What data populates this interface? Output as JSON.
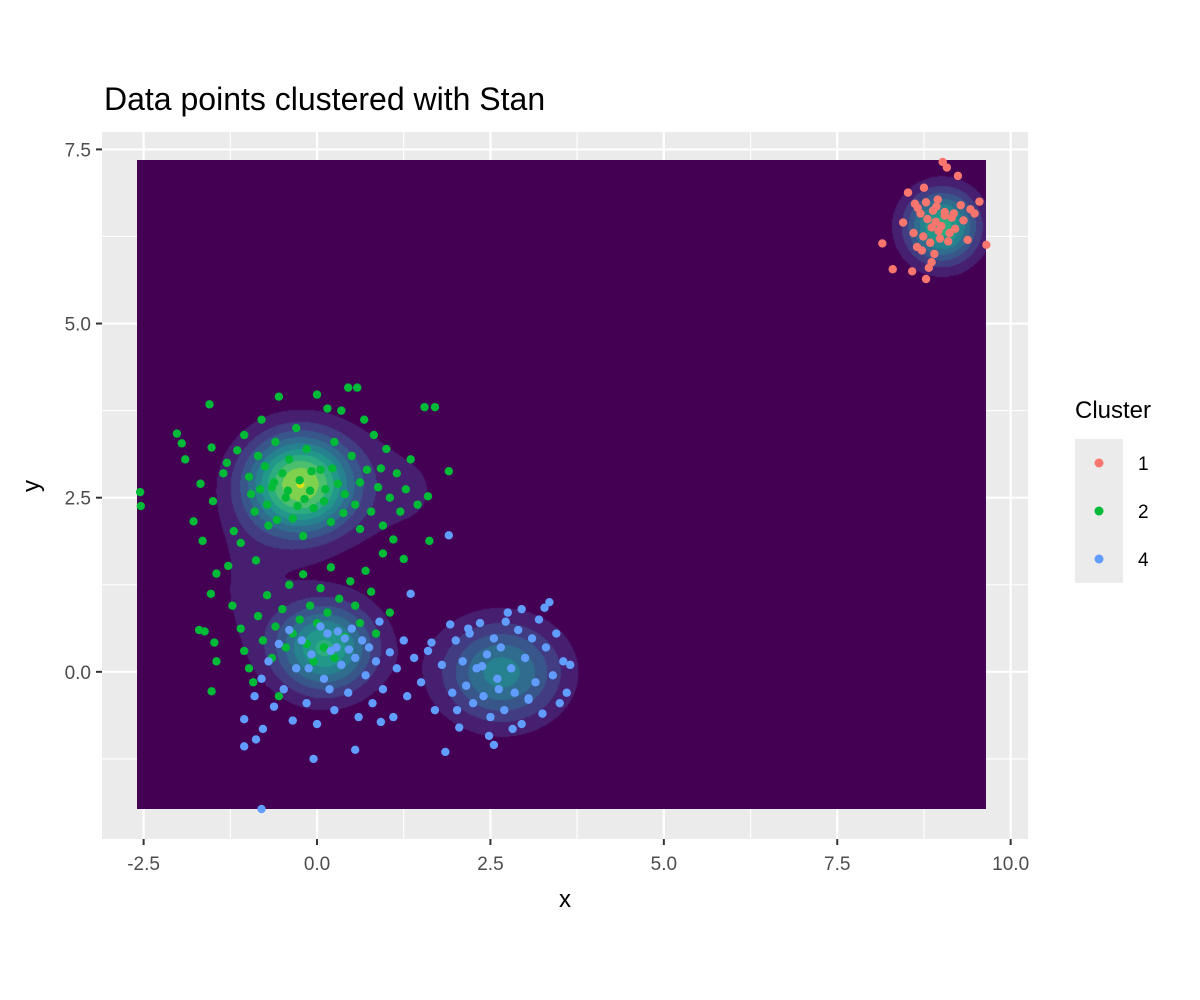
{
  "chart_data": {
    "type": "scatter",
    "title": "Data points clustered with Stan",
    "xlabel": "x",
    "ylabel": "y",
    "xlim": [
      -3.1,
      10.25
    ],
    "ylim": [
      -2.4,
      7.75
    ],
    "density_xlim": [
      -2.6,
      9.65
    ],
    "density_ylim": [
      -1.97,
      7.35
    ],
    "x_ticks": [
      {
        "value": -2.5,
        "label": "-2.5"
      },
      {
        "value": 0,
        "label": "0.0"
      },
      {
        "value": 2.5,
        "label": "2.5"
      },
      {
        "value": 5,
        "label": "5.0"
      },
      {
        "value": 7.5,
        "label": "7.5"
      },
      {
        "value": 10,
        "label": "10.0"
      }
    ],
    "y_ticks": [
      {
        "value": 0,
        "label": "0.0"
      },
      {
        "value": 2.5,
        "label": "2.5"
      },
      {
        "value": 5,
        "label": "5.0"
      },
      {
        "value": 7.5,
        "label": "7.5"
      }
    ],
    "legend": {
      "title": "Cluster",
      "position": "right",
      "entries": [
        {
          "label": "1",
          "color": "#F8766D"
        },
        {
          "label": "2",
          "color": "#00BA38"
        },
        {
          "label": "4",
          "color": "#619CFF"
        }
      ]
    },
    "colors": {
      "panel_bg": "#EBEBEB",
      "grid": "#FFFFFF",
      "density_low": "#440154",
      "density_high": "#DDE318"
    },
    "series": [
      {
        "name": "1",
        "color": "#F8766D",
        "points": [
          [
            9.02,
            7.32
          ],
          [
            9.08,
            7.24
          ],
          [
            9.24,
            7.12
          ],
          [
            8.75,
            6.95
          ],
          [
            8.52,
            6.88
          ],
          [
            9.55,
            6.75
          ],
          [
            8.62,
            6.72
          ],
          [
            8.78,
            6.74
          ],
          [
            8.95,
            6.78
          ],
          [
            9.28,
            6.7
          ],
          [
            9.42,
            6.64
          ],
          [
            9.48,
            6.58
          ],
          [
            8.88,
            6.62
          ],
          [
            8.7,
            6.58
          ],
          [
            9.05,
            6.55
          ],
          [
            9.15,
            6.52
          ],
          [
            8.8,
            6.5
          ],
          [
            8.92,
            6.46
          ],
          [
            9.0,
            6.4
          ],
          [
            8.86,
            6.38
          ],
          [
            8.96,
            6.33
          ],
          [
            8.45,
            6.45
          ],
          [
            9.12,
            6.3
          ],
          [
            9.2,
            6.36
          ],
          [
            8.74,
            6.25
          ],
          [
            8.98,
            6.22
          ],
          [
            9.1,
            6.18
          ],
          [
            8.84,
            6.16
          ],
          [
            8.15,
            6.15
          ],
          [
            9.65,
            6.13
          ],
          [
            8.65,
            6.1
          ],
          [
            8.72,
            6.05
          ],
          [
            8.9,
            6.0
          ],
          [
            8.86,
            5.88
          ],
          [
            8.82,
            5.8
          ],
          [
            8.3,
            5.78
          ],
          [
            8.58,
            5.75
          ],
          [
            8.78,
            5.64
          ],
          [
            9.05,
            6.6
          ],
          [
            8.66,
            6.66
          ],
          [
            9.32,
            6.48
          ],
          [
            8.6,
            6.3
          ],
          [
            9.18,
            6.58
          ],
          [
            8.93,
            6.68
          ],
          [
            9.38,
            6.2
          ]
        ]
      },
      {
        "name": "2",
        "color": "#00BA38",
        "points": [
          [
            -2.55,
            2.58
          ],
          [
            -2.54,
            2.38
          ],
          [
            -2.02,
            3.42
          ],
          [
            -1.95,
            3.28
          ],
          [
            -1.9,
            3.05
          ],
          [
            -1.78,
            2.16
          ],
          [
            -1.68,
            2.7
          ],
          [
            -1.65,
            1.88
          ],
          [
            -1.55,
            3.84
          ],
          [
            -1.52,
            3.22
          ],
          [
            -1.5,
            2.45
          ],
          [
            -1.45,
            1.41
          ],
          [
            -1.53,
            1.12
          ],
          [
            -1.7,
            0.6
          ],
          [
            -1.62,
            0.58
          ],
          [
            -1.48,
            0.42
          ],
          [
            -1.45,
            0.15
          ],
          [
            -1.52,
            -0.28
          ],
          [
            -1.3,
            3.0
          ],
          [
            -1.2,
            2.02
          ],
          [
            -1.15,
            3.18
          ],
          [
            -1.1,
            1.85
          ],
          [
            -1.05,
            3.4
          ],
          [
            -0.98,
            2.8
          ],
          [
            -0.95,
            2.55
          ],
          [
            -0.9,
            2.3
          ],
          [
            -0.88,
            1.6
          ],
          [
            -0.85,
            3.1
          ],
          [
            -0.8,
            3.62
          ],
          [
            -0.75,
            2.95
          ],
          [
            -0.72,
            2.4
          ],
          [
            -0.7,
            2.1
          ],
          [
            -0.65,
            2.65
          ],
          [
            -0.6,
            3.3
          ],
          [
            -0.55,
            3.95
          ],
          [
            -0.5,
            2.85
          ],
          [
            -0.45,
            2.5
          ],
          [
            -0.4,
            3.05
          ],
          [
            -0.35,
            2.2
          ],
          [
            -0.3,
            3.5
          ],
          [
            -0.25,
            2.75
          ],
          [
            -0.2,
            1.95
          ],
          [
            -0.15,
            3.2
          ],
          [
            -0.1,
            2.6
          ],
          [
            -0.05,
            2.35
          ],
          [
            0.0,
            3.98
          ],
          [
            0.05,
            2.9
          ],
          [
            0.1,
            2.45
          ],
          [
            0.15,
            3.78
          ],
          [
            0.2,
            2.15
          ],
          [
            0.25,
            3.3
          ],
          [
            0.3,
            2.7
          ],
          [
            0.35,
            3.75
          ],
          [
            0.4,
            2.55
          ],
          [
            0.45,
            4.08
          ],
          [
            0.5,
            3.1
          ],
          [
            0.55,
            2.4
          ],
          [
            0.58,
            4.08
          ],
          [
            0.62,
            2.05
          ],
          [
            0.68,
            3.62
          ],
          [
            0.72,
            2.9
          ],
          [
            0.78,
            2.3
          ],
          [
            0.82,
            3.4
          ],
          [
            0.88,
            2.65
          ],
          [
            0.95,
            2.1
          ],
          [
            1.0,
            3.2
          ],
          [
            1.05,
            2.5
          ],
          [
            1.1,
            1.9
          ],
          [
            1.15,
            2.85
          ],
          [
            1.2,
            2.3
          ],
          [
            1.28,
            2.62
          ],
          [
            1.35,
            3.05
          ],
          [
            1.45,
            2.4
          ],
          [
            1.55,
            3.8
          ],
          [
            1.6,
            2.52
          ],
          [
            1.62,
            1.88
          ],
          [
            1.7,
            3.8
          ],
          [
            1.9,
            2.88
          ],
          [
            -1.22,
            0.95
          ],
          [
            -1.1,
            0.62
          ],
          [
            -1.05,
            0.3
          ],
          [
            -0.98,
            0.05
          ],
          [
            -0.92,
            -0.15
          ],
          [
            -0.85,
            0.8
          ],
          [
            -0.78,
            0.45
          ],
          [
            -0.72,
            1.1
          ],
          [
            -0.65,
            0.2
          ],
          [
            -0.6,
            0.65
          ],
          [
            -0.55,
            -0.35
          ],
          [
            -0.5,
            0.9
          ],
          [
            -0.45,
            0.35
          ],
          [
            -0.4,
            1.25
          ],
          [
            -0.35,
            0.55
          ],
          [
            -0.3,
            0.05
          ],
          [
            -0.25,
            0.75
          ],
          [
            -0.2,
            1.4
          ],
          [
            -0.15,
            0.4
          ],
          [
            -0.1,
            0.95
          ],
          [
            -0.05,
            0.15
          ],
          [
            0.0,
            0.7
          ],
          [
            0.05,
            1.2
          ],
          [
            0.1,
            0.35
          ],
          [
            0.15,
            0.85
          ],
          [
            0.2,
            1.5
          ],
          [
            0.25,
            0.2
          ],
          [
            0.32,
            1.05
          ],
          [
            0.4,
            0.5
          ],
          [
            0.48,
            1.3
          ],
          [
            0.55,
            0.95
          ],
          [
            0.62,
            0.7
          ],
          [
            0.7,
            1.45
          ],
          [
            0.78,
            1.15
          ],
          [
            0.85,
            0.55
          ],
          [
            0.95,
            1.7
          ],
          [
            1.05,
            0.85
          ],
          [
            -0.62,
            2.72
          ],
          [
            -0.42,
            2.6
          ],
          [
            -0.18,
            2.48
          ],
          [
            -0.08,
            2.88
          ],
          [
            0.12,
            2.62
          ],
          [
            0.22,
            2.92
          ],
          [
            0.38,
            2.28
          ],
          [
            -0.28,
            2.38
          ],
          [
            -0.58,
            2.18
          ],
          [
            -0.82,
            2.62
          ],
          [
            0.62,
            2.72
          ],
          [
            0.92,
            2.92
          ],
          [
            -1.35,
            2.85
          ],
          [
            -1.28,
            1.52
          ],
          [
            1.25,
            1.62
          ]
        ]
      },
      {
        "name": "4",
        "color": "#619CFF",
        "points": [
          [
            -0.8,
            -1.97
          ],
          [
            -1.05,
            -1.07
          ],
          [
            -0.88,
            -0.97
          ],
          [
            -1.05,
            -0.68
          ],
          [
            -0.9,
            -0.35
          ],
          [
            -0.8,
            -0.1
          ],
          [
            -0.7,
            0.15
          ],
          [
            -0.62,
            -0.5
          ],
          [
            -0.55,
            0.4
          ],
          [
            -0.48,
            -0.25
          ],
          [
            -0.4,
            0.6
          ],
          [
            -0.35,
            -0.7
          ],
          [
            -0.3,
            0.05
          ],
          [
            -0.22,
            0.45
          ],
          [
            -0.15,
            -0.45
          ],
          [
            -0.08,
            0.25
          ],
          [
            0.0,
            -0.75
          ],
          [
            0.05,
            0.65
          ],
          [
            0.1,
            -0.1
          ],
          [
            0.15,
            0.55
          ],
          [
            0.2,
            0.3
          ],
          [
            0.25,
            -0.55
          ],
          [
            0.3,
            0.58
          ],
          [
            0.35,
            0.1
          ],
          [
            0.4,
            0.48
          ],
          [
            0.45,
            -0.3
          ],
          [
            0.5,
            0.62
          ],
          [
            0.55,
            0.2
          ],
          [
            0.6,
            -0.65
          ],
          [
            0.65,
            0.45
          ],
          [
            0.7,
            -0.05
          ],
          [
            0.75,
            0.35
          ],
          [
            0.8,
            -0.45
          ],
          [
            0.85,
            0.15
          ],
          [
            0.9,
            0.72
          ],
          [
            0.95,
            -0.25
          ],
          [
            1.05,
            0.28
          ],
          [
            1.1,
            -0.65
          ],
          [
            1.15,
            0.05
          ],
          [
            1.25,
            0.45
          ],
          [
            1.3,
            -0.35
          ],
          [
            1.4,
            0.2
          ],
          [
            1.5,
            -0.15
          ],
          [
            1.6,
            0.3
          ],
          [
            1.7,
            -0.55
          ],
          [
            1.8,
            0.1
          ],
          [
            1.9,
            1.96
          ],
          [
            1.95,
            -0.3
          ],
          [
            2.0,
            0.45
          ],
          [
            2.05,
            -0.8
          ],
          [
            2.1,
            0.15
          ],
          [
            2.15,
            -0.2
          ],
          [
            2.2,
            0.55
          ],
          [
            2.25,
            -0.45
          ],
          [
            2.3,
            0.05
          ],
          [
            2.35,
            0.7
          ],
          [
            2.4,
            -0.35
          ],
          [
            2.45,
            0.25
          ],
          [
            2.5,
            -0.65
          ],
          [
            2.55,
            0.48
          ],
          [
            2.6,
            -0.1
          ],
          [
            2.65,
            0.35
          ],
          [
            2.7,
            -0.55
          ],
          [
            2.75,
            0.85
          ],
          [
            2.8,
            0.05
          ],
          [
            2.85,
            -0.3
          ],
          [
            2.9,
            0.6
          ],
          [
            2.95,
            -0.75
          ],
          [
            3.0,
            0.2
          ],
          [
            3.05,
            -0.4
          ],
          [
            3.1,
            0.48
          ],
          [
            3.15,
            -0.15
          ],
          [
            3.2,
            0.75
          ],
          [
            3.25,
            -0.6
          ],
          [
            3.3,
            0.35
          ],
          [
            3.35,
            1.0
          ],
          [
            3.4,
            -0.05
          ],
          [
            3.45,
            0.55
          ],
          [
            3.5,
            -0.45
          ],
          [
            3.55,
            0.15
          ],
          [
            3.6,
            -0.3
          ],
          [
            3.65,
            0.1
          ],
          [
            2.95,
            0.9
          ],
          [
            3.28,
            0.92
          ],
          [
            2.55,
            -1.05
          ],
          [
            1.85,
            -1.15
          ],
          [
            -0.05,
            -1.25
          ],
          [
            0.55,
            -1.12
          ],
          [
            -0.78,
            -0.82
          ],
          [
            0.92,
            -0.72
          ],
          [
            1.35,
            1.12
          ],
          [
            2.18,
            0.62
          ],
          [
            2.48,
            -0.92
          ],
          [
            2.72,
            0.72
          ],
          [
            2.38,
            0.08
          ],
          [
            2.62,
            -0.25
          ],
          [
            2.82,
            -0.82
          ],
          [
            3.05,
            -0.38
          ],
          [
            0.28,
            0.35
          ],
          [
            0.46,
            0.32
          ],
          [
            0.18,
            -0.25
          ],
          [
            -0.12,
            0.05
          ],
          [
            1.65,
            0.42
          ],
          [
            1.92,
            0.68
          ],
          [
            2.02,
            -0.55
          ]
        ]
      }
    ],
    "density_components": [
      {
        "mx": 9.0,
        "my": 6.4,
        "sx": 0.36,
        "sy": 0.36,
        "w": 0.75
      },
      {
        "mx": -0.25,
        "my": 2.7,
        "sx": 0.55,
        "sy": 0.5,
        "w": 1.0
      },
      {
        "mx": 0.1,
        "my": 0.35,
        "sx": 0.5,
        "sy": 0.45,
        "w": 0.72
      },
      {
        "mx": 2.65,
        "my": 0.0,
        "sx": 0.6,
        "sy": 0.5,
        "w": 0.55
      },
      {
        "mx": -1.1,
        "my": 1.2,
        "sx": 0.5,
        "sy": 0.75,
        "w": 0.1
      },
      {
        "mx": 1.4,
        "my": 2.6,
        "sx": 0.6,
        "sy": 0.8,
        "w": 0.1
      }
    ]
  }
}
